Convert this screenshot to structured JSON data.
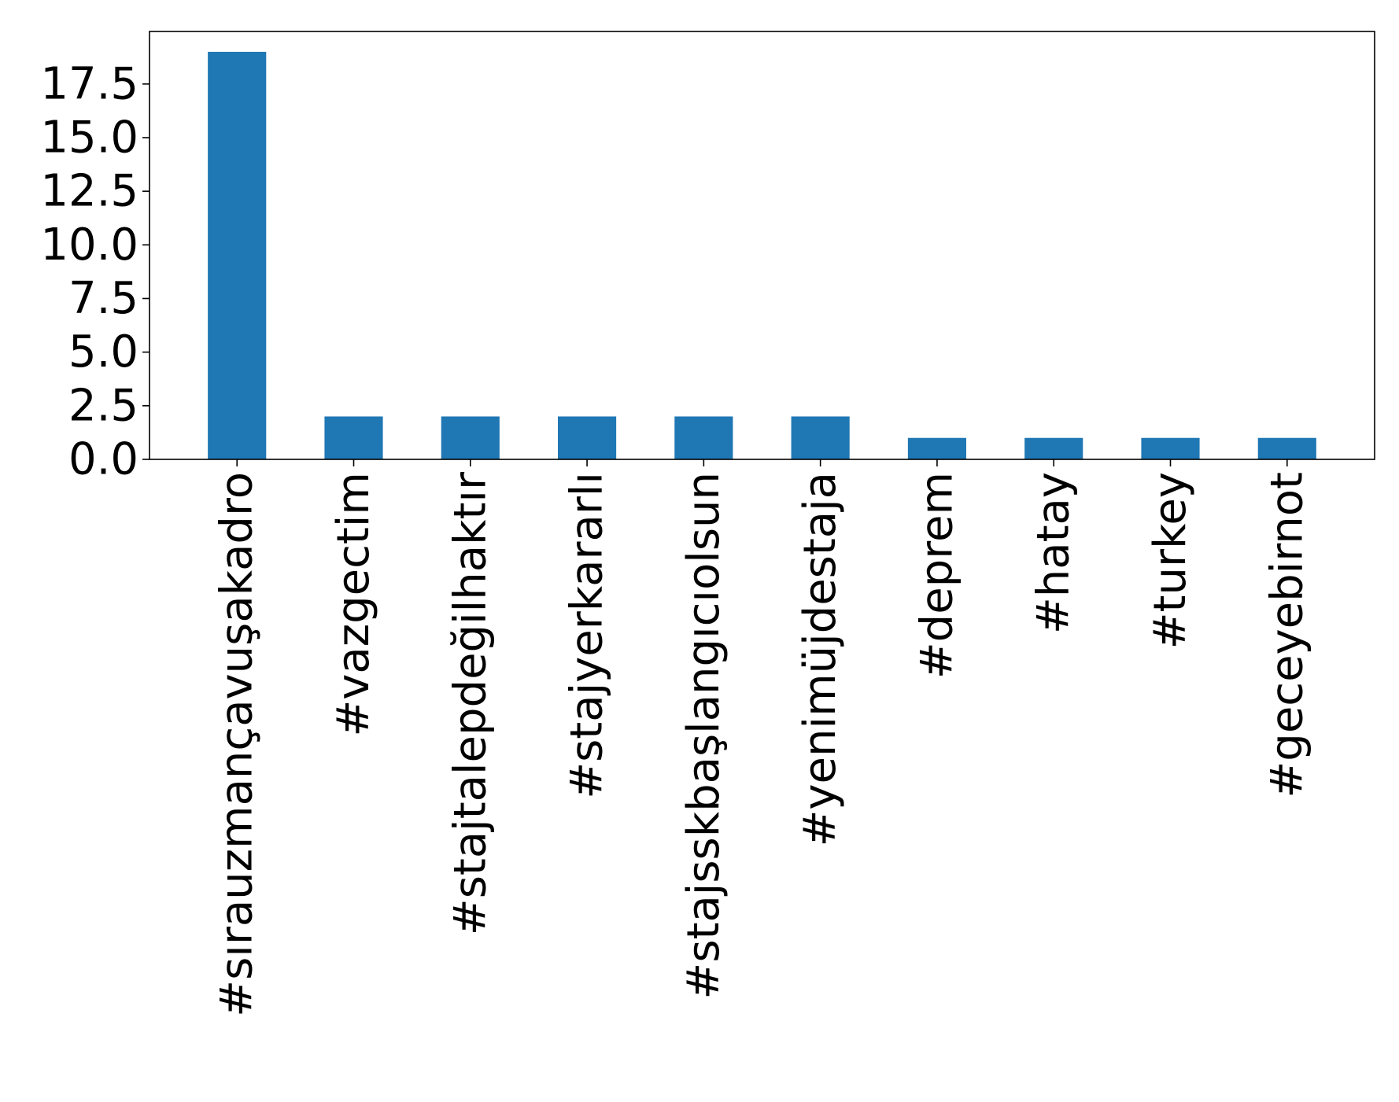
{
  "chart_data": {
    "type": "bar",
    "title": "",
    "xlabel": "",
    "ylabel": "",
    "categories": [
      "#sırauzmançavuşakadro",
      "#vazgectim",
      "#stajtalepdeğilhaktır",
      "#stajyerkararlı",
      "#stajsskbaşlangıcıolsun",
      "#yenimüjdestaja",
      "#deprem",
      "#hatay",
      "#turkey",
      "#geceyebirnot"
    ],
    "values": [
      19,
      2,
      2,
      2,
      2,
      2,
      1,
      1,
      1,
      1
    ],
    "ylim": [
      0,
      19.95
    ],
    "yticks": [
      0.0,
      2.5,
      5.0,
      7.5,
      10.0,
      12.5,
      15.0,
      17.5
    ],
    "ytick_labels": [
      "0.0",
      "2.5",
      "5.0",
      "7.5",
      "10.0",
      "12.5",
      "15.0",
      "17.5"
    ],
    "bar_color": "#1f77b4",
    "grid": false,
    "legend": "none"
  }
}
